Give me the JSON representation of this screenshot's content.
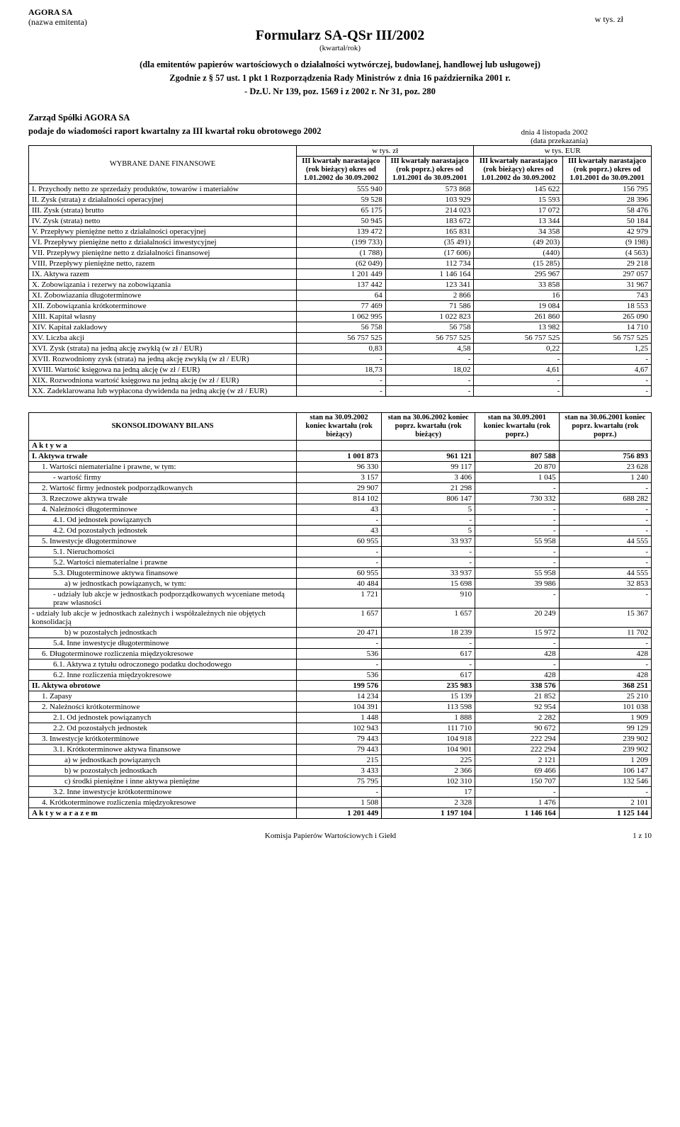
{
  "header": {
    "company": "AGORA SA",
    "issuer_note": "(nazwa emitenta)",
    "units_right": "w tys. zł",
    "form_title": "Formularz   SA-QSr III/2002",
    "form_sub": "(kwartał/rok)",
    "scope": "(dla emitentów papierów wartościowych o działalności wytwórczej, budowlanej, handlowej lub usługowej)",
    "legal1": "Zgodnie z § 57 ust. 1 pkt 1 Rozporządzenia Rady Ministrów z dnia 16 października 2001 r.",
    "legal2": "- Dz.U. Nr 139, poz. 1569 i z 2002 r. Nr 31, poz. 280",
    "board1": "Zarząd Spółki AGORA SA",
    "board2_a": "podaje do wiadomości raport kwartalny za   III ",
    "board2_b": "  kwartał roku obrotowego 2002",
    "date_stamp": "dnia 4 listopada 2002",
    "data_transfer": "(data przekazania)"
  },
  "fin_table": {
    "title": "WYBRANE DANE FINANSOWE",
    "unit_labels": [
      "w tys. zł",
      "w tys. EUR"
    ],
    "col_heads": [
      "III kwartały narastająco (rok bieżący) okres od 1.01.2002 do 30.09.2002",
      "III kwartały narastająco (rok poprz.) okres od 1.01.2001 do 30.09.2001",
      "III kwartały narastająco (rok bieżący) okres od 1.01.2002 do 30.09.2002",
      "III kwartały narastająco (rok poprz.) okres od 1.01.2001 do 30.09.2001"
    ],
    "rows": [
      {
        "l": "I. Przychody netto ze sprzedaży produktów, towarów i materiałów",
        "v": [
          "555 940",
          "573 868",
          "145 622",
          "156 795"
        ]
      },
      {
        "l": "II. Zysk (strata) z działalności operacyjnej",
        "v": [
          "59 528",
          "103 929",
          "15 593",
          "28 396"
        ]
      },
      {
        "l": "III. Zysk (strata) brutto",
        "v": [
          "65 175",
          "214 023",
          "17 072",
          "58 476"
        ]
      },
      {
        "l": "IV. Zysk (strata) netto",
        "v": [
          "50 945",
          "183 672",
          "13 344",
          "50 184"
        ]
      },
      {
        "l": "V. Przepływy pieniężne netto z działalności operacyjnej",
        "v": [
          "139 472",
          "165 831",
          "34 358",
          "42 979"
        ]
      },
      {
        "l": "VI. Przepływy pieniężne netto z działalności inwestycyjnej",
        "v": [
          "(199 733)",
          "(35 491)",
          "(49 203)",
          "(9 198)"
        ]
      },
      {
        "l": "VII. Przepływy pieniężne netto z działalności finansowej",
        "v": [
          "(1 788)",
          "(17 606)",
          "(440)",
          "(4 563)"
        ]
      },
      {
        "l": "VIII. Przepływy pieniężne netto, razem",
        "v": [
          "(62 049)",
          "112 734",
          "(15 285)",
          "29 218"
        ]
      },
      {
        "l": "IX. Aktywa razem",
        "v": [
          "1 201 449",
          "1 146 164",
          "295 967",
          "297 057"
        ]
      },
      {
        "l": "X. Zobowiązania i rezerwy na zobowiązania",
        "v": [
          "137 442",
          "123 341",
          "33 858",
          "31 967"
        ]
      },
      {
        "l": "XI. Zobowiazania długoterminowe",
        "v": [
          "64",
          "2 866",
          "16",
          "743"
        ]
      },
      {
        "l": "XII. Zobowiązania krótkoterminowe",
        "v": [
          "77 469",
          "71 586",
          "19 084",
          "18 553"
        ]
      },
      {
        "l": "XIII. Kapitał własny",
        "v": [
          "1 062 995",
          "1 022 823",
          "261 860",
          "265 090"
        ]
      },
      {
        "l": "XIV. Kapitał zakładowy",
        "v": [
          "56 758",
          "56 758",
          "13 982",
          "14 710"
        ]
      },
      {
        "l": "XV. Liczba akcji",
        "v": [
          "56 757 525",
          "56 757 525",
          "56 757 525",
          "56 757 525"
        ]
      },
      {
        "l": "XVI. Zysk (strata) na jedną akcję zwykłą (w zł / EUR)",
        "v": [
          "0,83",
          "4,58",
          "0,22",
          "1,25"
        ]
      },
      {
        "l": "XVII. Rozwodniony zysk (strata) na jedną akcję zwykłą (w zł / EUR)",
        "v": [
          "-",
          "-",
          "-",
          "-"
        ]
      },
      {
        "l": "XVIII. Wartość księgowa na jedną akcję (w zł / EUR)",
        "v": [
          "18,73",
          "18,02",
          "4,61",
          "4,67"
        ]
      },
      {
        "l": "XIX. Rozwodniona wartość księgowa na jedną akcję (w zł / EUR)",
        "v": [
          "-",
          "-",
          "-",
          "-"
        ]
      },
      {
        "l": "XX. Zadeklarowana lub wypłacona dywidenda na jedną akcję (w zł / EUR)",
        "v": [
          "-",
          "-",
          "-",
          "-"
        ]
      }
    ]
  },
  "balance": {
    "title": "SKONSOLIDOWANY BILANS",
    "col_heads": [
      "stan na 30.09.2002 koniec kwartału (rok bieżący)",
      "stan na 30.06.2002 koniec poprz. kwartału (rok bieżący)",
      "stan na 30.09.2001 koniec kwartału (rok poprz.)",
      "stan na 30.06.2001 koniec poprz. kwartału (rok poprz.)"
    ],
    "rows": [
      {
        "l": "A k t y w a",
        "b": true,
        "v": [
          "",
          "",
          "",
          ""
        ]
      },
      {
        "l": "I. Aktywa trwałe",
        "b": true,
        "v": [
          "1 001 873",
          "961 121",
          "807 588",
          "756 893"
        ]
      },
      {
        "l": "1. Wartości niematerialne i prawne, w tym:",
        "i": 1,
        "v": [
          "96 330",
          "99 117",
          "20 870",
          "23 628"
        ]
      },
      {
        "l": "- wartość firmy",
        "i": 2,
        "v": [
          "3 157",
          "3 406",
          "1 045",
          "1 240"
        ]
      },
      {
        "l": "2. Wartość firmy jednostek podporządkowanych",
        "i": 1,
        "v": [
          "29 907",
          "21 298",
          "-",
          "-"
        ]
      },
      {
        "l": "3. Rzeczowe aktywa trwałe",
        "i": 1,
        "v": [
          "814 102",
          "806 147",
          "730 332",
          "688 282"
        ]
      },
      {
        "l": "4. Należności długoterminowe",
        "i": 1,
        "v": [
          "43",
          "5",
          "-",
          "-"
        ]
      },
      {
        "l": "4.1. Od jednostek powiązanych",
        "i": 2,
        "v": [
          "-",
          "-",
          "-",
          "-"
        ]
      },
      {
        "l": "4.2. Od pozostałych jednostek",
        "i": 2,
        "v": [
          "43",
          "5",
          "-",
          "-"
        ]
      },
      {
        "l": "5. Inwestycje długoterminowe",
        "i": 1,
        "v": [
          "60 955",
          "33 937",
          "55 958",
          "44 555"
        ]
      },
      {
        "l": "5.1. Nieruchomości",
        "i": 2,
        "v": [
          "-",
          "-",
          "-",
          "-"
        ]
      },
      {
        "l": "5.2. Wartości niematerialne i prawne",
        "i": 2,
        "v": [
          "-",
          "-",
          "-",
          "-"
        ]
      },
      {
        "l": "5.3. Długoterminowe aktywa finansowe",
        "i": 2,
        "v": [
          "60 955",
          "33 937",
          "55 958",
          "44 555"
        ]
      },
      {
        "l": "a) w jednostkach powiązanych, w tym:",
        "i": 3,
        "v": [
          "40 484",
          "15 698",
          "39 986",
          "32 853"
        ]
      },
      {
        "l": "- udziały lub akcje w jednostkach podporządkowanych wyceniane metodą praw własności",
        "i": 2,
        "v": [
          "1 721",
          "910",
          "-",
          "-"
        ]
      },
      {
        "l": "- udziały lub akcje w jednostkach zależnych i współzależnych nie objętych konsolidacją",
        "i": 0,
        "v": [
          "1 657",
          "1 657",
          "20 249",
          "15 367"
        ]
      },
      {
        "l": "b) w pozostałych jednostkach",
        "i": 3,
        "v": [
          "20 471",
          "18 239",
          "15 972",
          "11 702"
        ]
      },
      {
        "l": "5.4. Inne inwestycje długoterminowe",
        "i": 2,
        "v": [
          "-",
          "-",
          "-",
          "-"
        ]
      },
      {
        "l": "6. Długoterminowe rozliczenia międzyokresowe",
        "i": 1,
        "v": [
          "536",
          "617",
          "428",
          "428"
        ]
      },
      {
        "l": "6.1. Aktywa z tytułu odroczonego podatku dochodowego",
        "i": 2,
        "v": [
          "-",
          "-",
          "-",
          "-"
        ]
      },
      {
        "l": "6.2. Inne rozliczenia międzyokresowe",
        "i": 2,
        "v": [
          "536",
          "617",
          "428",
          "428"
        ]
      },
      {
        "l": "II. Aktywa obrotowe",
        "b": true,
        "v": [
          "199 576",
          "235 983",
          "338 576",
          "368 251"
        ]
      },
      {
        "l": "1. Zapasy",
        "i": 1,
        "v": [
          "14 234",
          "15 139",
          "21 852",
          "25 210"
        ]
      },
      {
        "l": "2. Należności krótkoterminowe",
        "i": 1,
        "v": [
          "104 391",
          "113 598",
          "92 954",
          "101 038"
        ]
      },
      {
        "l": "2.1. Od jednostek powiązanych",
        "i": 2,
        "v": [
          "1 448",
          "1 888",
          "2 282",
          "1 909"
        ]
      },
      {
        "l": "2.2. Od pozostałych jednostek",
        "i": 2,
        "v": [
          "102 943",
          "111 710",
          "90 672",
          "99 129"
        ]
      },
      {
        "l": "3. Inwestycje krótkoterminowe",
        "i": 1,
        "v": [
          "79 443",
          "104 918",
          "222 294",
          "239 902"
        ]
      },
      {
        "l": "3.1. Krótkoterminowe aktywa finansowe",
        "i": 2,
        "v": [
          "79 443",
          "104 901",
          "222 294",
          "239 902"
        ]
      },
      {
        "l": "a) w jednostkach powiązanych",
        "i": 3,
        "v": [
          "215",
          "225",
          "2 121",
          "1 209"
        ]
      },
      {
        "l": "b) w pozostałych jednostkach",
        "i": 3,
        "v": [
          "3 433",
          "2 366",
          "69 466",
          "106 147"
        ]
      },
      {
        "l": "c) środki pieniężne i inne aktywa pieniężne",
        "i": 3,
        "v": [
          "75 795",
          "102 310",
          "150 707",
          "132 546"
        ]
      },
      {
        "l": "3.2. Inne inwestycje krótkoterminowe",
        "i": 2,
        "v": [
          "-",
          "17",
          "-",
          "-"
        ]
      },
      {
        "l": "4. Krótkoterminowe rozliczenia międzyokresowe",
        "i": 1,
        "v": [
          "1 508",
          "2 328",
          "1 476",
          "2 101"
        ]
      },
      {
        "l": "A k t y w a   r a z e m",
        "b": true,
        "v": [
          "1 201 449",
          "1 197 104",
          "1 146 164",
          "1 125 144"
        ]
      }
    ]
  },
  "footer": {
    "left": "Komisja Papierów Wartościowych i Giełd",
    "right": "1 z  10"
  }
}
